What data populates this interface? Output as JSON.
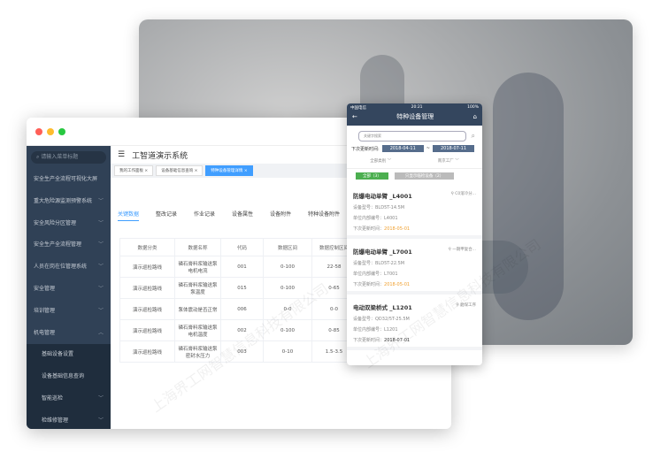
{
  "desktop": {
    "search_placeholder": "请输入菜单标题",
    "menu": [
      {
        "label": "安全生产全流程可视化大屏",
        "chev": ""
      },
      {
        "label": "重大危险源监测预警系统",
        "chev": "﹀"
      },
      {
        "label": "安全风险分区管理",
        "chev": "﹀"
      },
      {
        "label": "安全生产全流程管理",
        "chev": "﹀"
      },
      {
        "label": "人员在岗在位管理系统",
        "chev": "﹀"
      },
      {
        "label": "安全管理",
        "chev": "﹀"
      },
      {
        "label": "培训管理",
        "chev": "﹀"
      },
      {
        "label": "机电管理",
        "chev": "︿"
      }
    ],
    "submenu": [
      "基础设备设置",
      "设备基础信息查询"
    ],
    "menu2": [
      {
        "label": "智能巡检",
        "chev": "﹀"
      },
      {
        "label": "检维修管理",
        "chev": "﹀"
      }
    ],
    "title": "工智道演示系统",
    "tags": [
      "我的工作面板",
      "设备基础信息查询",
      "特种设备管理详情"
    ],
    "tabs": [
      "关键数据",
      "整改记录",
      "作业记录",
      "设备属性",
      "设备附件",
      "特种设备附件"
    ],
    "table": {
      "headers": [
        "数据分类",
        "数据名称",
        "代码",
        "数据区间",
        "数据控制区间"
      ],
      "rows": [
        [
          "演示巡检路线",
          "磷石膏料浆输送泵电机电流",
          "001",
          "0-100",
          "22-58"
        ],
        [
          "演示巡检路线",
          "磷石膏料浆输送泵泵温度",
          "015",
          "0-100",
          "0-65"
        ],
        [
          "演示巡检路线",
          "泵体震动是否正常",
          "006",
          "0-0",
          "0-0"
        ],
        [
          "演示巡检路线",
          "磷石膏料浆输送泵电机温度",
          "002",
          "0-100",
          "0-85"
        ],
        [
          "演示巡检路线",
          "磷石膏料浆输送泵密封水压力",
          "003",
          "0-10",
          "1.5-3.5"
        ]
      ]
    }
  },
  "phone": {
    "carrier": "中国电信",
    "time": "20:21",
    "battery": "100%",
    "title": "特种设备管理",
    "search_placeholder": "关键字搜索",
    "date_label": "下次更新时间:",
    "date_from": "2018-04-11",
    "date_sep": "~",
    "date_to": "2018-07-11",
    "filter1": "全部类别",
    "filter2": "南京工厂",
    "btn_all": "全部（3）",
    "btn_only": "只显示临检设备（2）",
    "cards": [
      {
        "name": "防爆电动单臂 _L4001",
        "loc": "C0溶冷分...",
        "model": "设备型号：BLD5T-14.5M",
        "code": "单位内部编号：L4001",
        "next_label": "下次更新时间：",
        "next": "2018-05-01",
        "warn": true
      },
      {
        "name": "防爆电动单臂 _L7001",
        "loc": "一期甲复合...",
        "model": "设备型号：BLD5T-22.5M",
        "code": "单位内部编号：L7001",
        "next_label": "下次更新时间：",
        "next": "2018-05-01",
        "warn": true
      },
      {
        "name": "电动双梁桥式 _L1201",
        "loc": "磨煤工序",
        "model": "设备型号：QD32/5T-25.5M",
        "code": "单位内部编号：L1201",
        "next_label": "下次更新时间：",
        "next": "2018-07-01",
        "warn": false
      }
    ]
  },
  "watermark": "上海界工网智慧信息科技有限公司"
}
